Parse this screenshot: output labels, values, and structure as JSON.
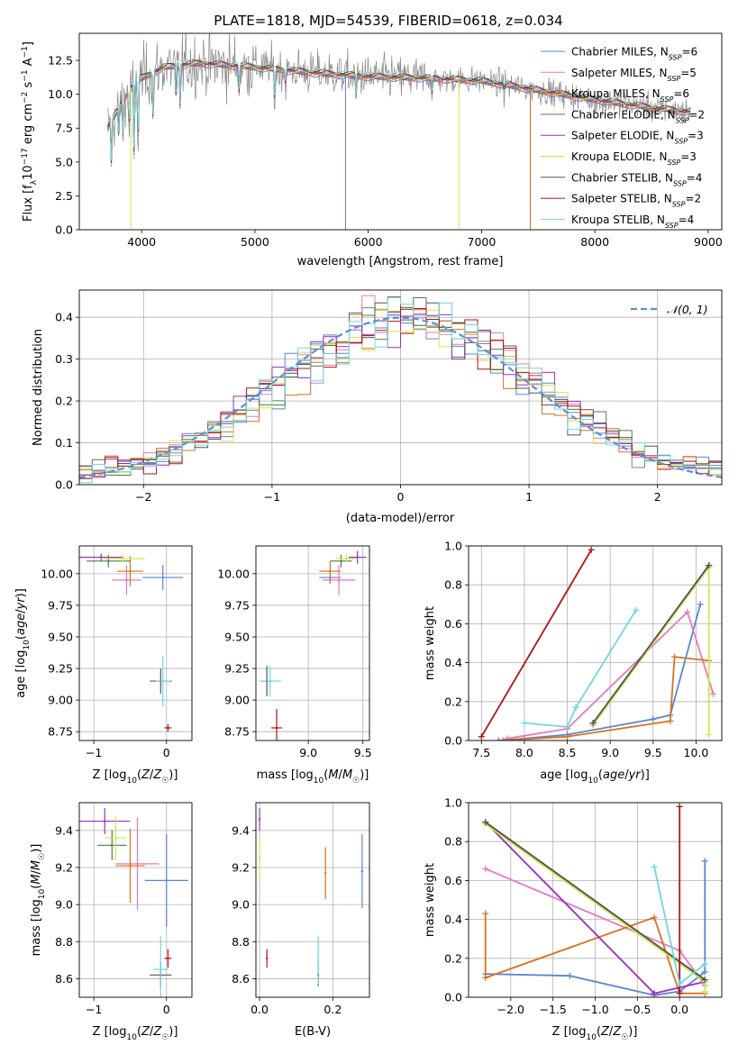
{
  "figure": {
    "title": "PLATE=1818, MJD=54539, FIBERID=0618, z=0.034"
  },
  "colors": {
    "Chabrier MILES": "#5b84d6",
    "Salpeter MILES": "#e87ab8",
    "Kroupa MILES": "#d9711f",
    "Chabrier ELODIE": "#4a7d4a",
    "Salpeter ELODIE": "#9a2ec0",
    "Kroupa ELODIE": "#cfe84a",
    "Chabrier STELIB": "#555555",
    "Salpeter STELIB": "#b01515",
    "Kroupa STELIB": "#6fd7df",
    "normal": "#5b8fd6",
    "data": "#888888"
  },
  "chart_data": [
    {
      "id": "spectrum",
      "type": "line",
      "title": "PLATE=1818, MJD=54539, FIBERID=0618, z=0.034",
      "xlabel": "wavelength [Angstrom, rest frame]",
      "ylabel": "Flux [f_λ10^-17 erg cm^-2 s^-1 A^-1]",
      "xlim": [
        3450,
        9120
      ],
      "ylim": [
        0,
        14.5
      ],
      "xticks": [
        4000,
        5000,
        6000,
        7000,
        8000,
        9000
      ],
      "yticks": [
        0.0,
        2.5,
        5.0,
        7.5,
        10.0,
        12.5
      ],
      "grid": false,
      "legend_position": "top-right",
      "legend": [
        {
          "model": "Chabrier MILES",
          "n_ssp": 6
        },
        {
          "model": "Salpeter MILES",
          "n_ssp": 5
        },
        {
          "model": "Kroupa MILES",
          "n_ssp": 6
        },
        {
          "model": "Chabrier ELODIE",
          "n_ssp": 2
        },
        {
          "model": "Salpeter ELODIE",
          "n_ssp": 3
        },
        {
          "model": "Kroupa ELODIE",
          "n_ssp": 3
        },
        {
          "model": "Chabrier STELIB",
          "n_ssp": 4
        },
        {
          "model": "Salpeter STELIB",
          "n_ssp": 2
        },
        {
          "model": "Kroupa STELIB",
          "n_ssp": 4
        }
      ],
      "wavelength_range": [
        3700,
        8850
      ],
      "continuum": [
        [
          3700,
          7.5
        ],
        [
          3800,
          9.0
        ],
        [
          3900,
          10.5
        ],
        [
          4000,
          11.2
        ],
        [
          4200,
          12.0
        ],
        [
          4500,
          12.3
        ],
        [
          5000,
          12.0
        ],
        [
          5500,
          11.6
        ],
        [
          6000,
          11.3
        ],
        [
          6500,
          11.2
        ],
        [
          7000,
          11.0
        ],
        [
          7500,
          10.3
        ],
        [
          8000,
          9.6
        ],
        [
          8500,
          9.0
        ],
        [
          8850,
          8.7
        ]
      ],
      "absorption_features": [
        [
          3734,
          3.5
        ],
        [
          3798,
          2.0
        ],
        [
          3835,
          2.5
        ],
        [
          3889,
          3.0
        ],
        [
          3934,
          5.5
        ],
        [
          3969,
          5.0
        ],
        [
          4102,
          3.5
        ],
        [
          4304,
          3.0
        ],
        [
          4341,
          3.0
        ],
        [
          4861,
          2.0
        ],
        [
          5175,
          2.5
        ],
        [
          5270,
          1.0
        ],
        [
          5893,
          1.5
        ],
        [
          6563,
          1.0
        ],
        [
          7200,
          0.5
        ]
      ],
      "spikes": [
        {
          "x": 5800,
          "y_min": 0.0,
          "series": "Chabrier MILES"
        },
        {
          "x": 6800,
          "y_min": 0.0,
          "series": "Kroupa ELODIE"
        },
        {
          "x": 7430,
          "y_min": 0.0,
          "series": "Kroupa MILES"
        },
        {
          "x": 3905,
          "y_min": 0.0,
          "series": "Kroupa ELODIE"
        }
      ]
    },
    {
      "id": "residuals",
      "type": "histogram",
      "xlabel": "(data-model)/error",
      "ylabel": "Normed distribution",
      "xlim": [
        -2.5,
        2.5
      ],
      "ylim": [
        0,
        0.465
      ],
      "xticks": [
        -2,
        -1,
        0,
        1,
        2
      ],
      "yticks": [
        0.0,
        0.1,
        0.2,
        0.3,
        0.4
      ],
      "grid": true,
      "legend_position": "top-right",
      "legend": [
        {
          "name": "𝒩(0, 1)"
        }
      ],
      "bin_width": 0.1,
      "bins_range": [
        -2.5,
        2.5
      ],
      "reference_curve": "standard normal"
    },
    {
      "id": "age_vs_Z",
      "type": "scatter",
      "xlabel": "Z [log10(Z/Z☉)]",
      "ylabel": "age [log10(age/yr)]",
      "xlim": [
        -1.2,
        0.35
      ],
      "ylim": [
        8.68,
        10.22
      ],
      "xticks": [
        -1,
        0
      ],
      "yticks": [
        8.75,
        9.0,
        9.25,
        9.5,
        9.75,
        10.0
      ],
      "grid": true,
      "points": [
        {
          "series": "Chabrier MILES",
          "x": -0.05,
          "y": 9.97,
          "xerr": 0.28,
          "yerr": 0.1
        },
        {
          "series": "Salpeter MILES",
          "x": -0.55,
          "y": 9.95,
          "xerr": 0.2,
          "yerr": 0.12
        },
        {
          "series": "Kroupa MILES",
          "x": -0.5,
          "y": 10.02,
          "xerr": 0.18,
          "yerr": 0.12
        },
        {
          "series": "Chabrier ELODIE",
          "x": -0.8,
          "y": 10.1,
          "xerr": 0.3,
          "yerr": 0.05
        },
        {
          "series": "Salpeter ELODIE",
          "x": -0.9,
          "y": 10.13,
          "xerr": 0.3,
          "yerr": 0.03
        },
        {
          "series": "Kroupa ELODIE",
          "x": -0.6,
          "y": 10.12,
          "xerr": 0.3,
          "yerr": 0.03
        },
        {
          "series": "Chabrier STELIB",
          "x": -0.08,
          "y": 9.15,
          "xerr": 0.15,
          "yerr": 0.1
        },
        {
          "series": "Salpeter STELIB",
          "x": 0.02,
          "y": 8.78,
          "xerr": 0.05,
          "yerr": 0.03
        },
        {
          "series": "Kroupa STELIB",
          "x": -0.05,
          "y": 9.15,
          "xerr": 0.1,
          "yerr": 0.2
        }
      ]
    },
    {
      "id": "age_vs_mass",
      "type": "scatter",
      "xlabel": "mass [log10(M/M☉)]",
      "ylabel": "",
      "xlim": [
        8.52,
        9.56
      ],
      "ylim": [
        8.68,
        10.22
      ],
      "xticks": [
        9.0,
        9.5
      ],
      "yticks": [
        8.75,
        9.0,
        9.25,
        9.5,
        9.75,
        10.0
      ],
      "grid": true,
      "points": [
        {
          "series": "Chabrier MILES",
          "x": 9.2,
          "y": 9.97,
          "xerr": 0.1,
          "yerr": 0.05
        },
        {
          "series": "Salpeter MILES",
          "x": 9.28,
          "y": 9.95,
          "xerr": 0.15,
          "yerr": 0.12
        },
        {
          "series": "Kroupa MILES",
          "x": 9.2,
          "y": 10.02,
          "xerr": 0.1,
          "yerr": 0.08
        },
        {
          "series": "Chabrier ELODIE",
          "x": 9.3,
          "y": 10.1,
          "xerr": 0.1,
          "yerr": 0.05
        },
        {
          "series": "Salpeter ELODIE",
          "x": 9.45,
          "y": 10.13,
          "xerr": 0.08,
          "yerr": 0.05
        },
        {
          "series": "Kroupa ELODIE",
          "x": 9.35,
          "y": 10.12,
          "xerr": 0.1,
          "yerr": 0.03
        },
        {
          "series": "Chabrier STELIB",
          "x": 8.62,
          "y": 9.15,
          "xerr": 0.05,
          "yerr": 0.12
        },
        {
          "series": "Salpeter STELIB",
          "x": 8.71,
          "y": 8.78,
          "xerr": 0.05,
          "yerr": 0.15
        },
        {
          "series": "Kroupa STELIB",
          "x": 8.65,
          "y": 9.15,
          "xerr": 0.1,
          "yerr": 0.12
        }
      ]
    },
    {
      "id": "weight_vs_age",
      "type": "line",
      "xlabel": "age [log10(age/yr)]",
      "ylabel": "mass weight",
      "xlim": [
        7.35,
        10.3
      ],
      "ylim": [
        0,
        1.0
      ],
      "xticks": [
        7.5,
        8.0,
        8.5,
        9.0,
        9.5,
        10.0
      ],
      "yticks": [
        0.0,
        0.2,
        0.4,
        0.6,
        0.8,
        1.0
      ],
      "grid": true,
      "series": [
        {
          "name": "Chabrier MILES",
          "x": [
            7.7,
            8.0,
            8.5,
            9.5,
            9.7,
            10.05
          ],
          "y": [
            0.0,
            0.01,
            0.03,
            0.11,
            0.13,
            0.7
          ]
        },
        {
          "name": "Salpeter MILES",
          "x": [
            7.8,
            8.5,
            9.9,
            10.2
          ],
          "y": [
            0.01,
            0.06,
            0.66,
            0.24
          ]
        },
        {
          "name": "Kroupa MILES",
          "x": [
            7.75,
            8.5,
            9.7,
            9.75,
            10.15
          ],
          "y": [
            0.0,
            0.02,
            0.1,
            0.43,
            0.41
          ]
        },
        {
          "name": "Chabrier ELODIE",
          "x": [
            8.8,
            10.15
          ],
          "y": [
            0.09,
            0.9
          ]
        },
        {
          "name": "Salpeter ELODIE",
          "x": [
            8.8,
            10.15
          ],
          "y": [
            0.08,
            0.9
          ]
        },
        {
          "name": "Kroupa ELODIE",
          "x": [
            8.8,
            10.15,
            10.15
          ],
          "y": [
            0.08,
            0.89,
            0.03
          ]
        },
        {
          "name": "Chabrier STELIB",
          "x": [
            8.8,
            10.15
          ],
          "y": [
            0.09,
            0.9
          ]
        },
        {
          "name": "Salpeter STELIB",
          "x": [
            7.5,
            8.78
          ],
          "y": [
            0.02,
            0.98
          ]
        },
        {
          "name": "Kroupa STELIB",
          "x": [
            8.0,
            8.5,
            8.6,
            9.3
          ],
          "y": [
            0.09,
            0.07,
            0.17,
            0.67
          ]
        }
      ]
    },
    {
      "id": "mass_vs_Z",
      "type": "scatter",
      "xlabel": "Z [log10(Z/Z☉)]",
      "ylabel": "mass [log10(M/M☉)]",
      "xlim": [
        -1.2,
        0.35
      ],
      "ylim": [
        8.5,
        9.55
      ],
      "xticks": [
        -1,
        0
      ],
      "yticks": [
        8.6,
        8.8,
        9.0,
        9.2,
        9.4
      ],
      "grid": true,
      "points": [
        {
          "series": "Chabrier MILES",
          "x": 0.0,
          "y": 9.13,
          "xerr": 0.3,
          "yerr": 0.25
        },
        {
          "series": "Salpeter MILES",
          "x": -0.4,
          "y": 9.22,
          "xerr": 0.3,
          "yerr": 0.25
        },
        {
          "series": "Kroupa MILES",
          "x": -0.5,
          "y": 9.21,
          "xerr": 0.2,
          "yerr": 0.2
        },
        {
          "series": "Chabrier ELODIE",
          "x": -0.75,
          "y": 9.32,
          "xerr": 0.2,
          "yerr": 0.08
        },
        {
          "series": "Salpeter ELODIE",
          "x": -0.85,
          "y": 9.45,
          "xerr": 0.35,
          "yerr": 0.07
        },
        {
          "series": "Kroupa ELODIE",
          "x": -0.7,
          "y": 9.36,
          "xerr": 0.15,
          "yerr": 0.12
        },
        {
          "series": "Chabrier STELIB",
          "x": -0.08,
          "y": 8.62,
          "xerr": 0.15,
          "yerr": 0.07
        },
        {
          "series": "Salpeter STELIB",
          "x": 0.02,
          "y": 8.71,
          "xerr": 0.05,
          "yerr": 0.05
        },
        {
          "series": "Kroupa STELIB",
          "x": -0.08,
          "y": 8.65,
          "xerr": 0.1,
          "yerr": 0.18
        }
      ]
    },
    {
      "id": "mass_vs_ebv",
      "type": "scatter",
      "xlabel": "E(B-V)",
      "ylabel": "",
      "xlim": [
        -0.01,
        0.3
      ],
      "ylim": [
        8.5,
        9.55
      ],
      "xticks": [
        0.0,
        0.2
      ],
      "yticks": [
        8.6,
        8.8,
        9.0,
        9.2,
        9.4
      ],
      "grid": true,
      "points": [
        {
          "series": "Chabrier MILES",
          "x": 0.28,
          "y": 9.18,
          "xerr": 0,
          "yerr": 0.2
        },
        {
          "series": "Kroupa MILES",
          "x": 0.18,
          "y": 9.17,
          "xerr": 0,
          "yerr": 0.14
        },
        {
          "series": "Salpeter ELODIE",
          "x": 0.0,
          "y": 9.46,
          "xerr": 0,
          "yerr": 0.06
        },
        {
          "series": "Kroupa ELODIE",
          "x": 0.0,
          "y": 9.25,
          "xerr": 0,
          "yerr": 0.12
        },
        {
          "series": "Chabrier STELIB",
          "x": 0.16,
          "y": 8.62,
          "xerr": 0,
          "yerr": 0.06
        },
        {
          "series": "Salpeter STELIB",
          "x": 0.02,
          "y": 8.71,
          "xerr": 0,
          "yerr": 0.05
        },
        {
          "series": "Kroupa STELIB",
          "x": 0.16,
          "y": 8.7,
          "xerr": 0,
          "yerr": 0.13
        }
      ]
    },
    {
      "id": "weight_vs_Z",
      "type": "line",
      "xlabel": "Z [log10(Z/Z☉)]",
      "ylabel": "mass weight",
      "xlim": [
        -2.5,
        0.5
      ],
      "ylim": [
        0,
        1.0
      ],
      "xticks": [
        -2.0,
        -1.5,
        -1.0,
        -0.5,
        0.0
      ],
      "yticks": [
        0.0,
        0.2,
        0.4,
        0.6,
        0.8,
        1.0
      ],
      "grid": true,
      "series": [
        {
          "name": "Chabrier MILES",
          "x": [
            -2.3,
            -1.3,
            -0.3,
            0.0,
            0.3,
            0.3
          ],
          "y": [
            0.12,
            0.11,
            0.01,
            0.03,
            0.13,
            0.7
          ]
        },
        {
          "name": "Salpeter MILES",
          "x": [
            -2.3,
            0.0,
            0.3
          ],
          "y": [
            0.66,
            0.24,
            0.06
          ]
        },
        {
          "name": "Kroupa MILES",
          "x": [
            -2.3,
            -2.3,
            -0.3,
            0.0,
            0.3
          ],
          "y": [
            0.43,
            0.1,
            0.41,
            0.02,
            0.02
          ]
        },
        {
          "name": "Chabrier ELODIE",
          "x": [
            -2.3,
            0.3
          ],
          "y": [
            0.9,
            0.09
          ]
        },
        {
          "name": "Salpeter ELODIE",
          "x": [
            -2.3,
            -0.3,
            0.3
          ],
          "y": [
            0.9,
            0.02,
            0.08
          ]
        },
        {
          "name": "Kroupa ELODIE",
          "x": [
            -2.3,
            0.3,
            0.3
          ],
          "y": [
            0.89,
            0.08,
            0.03
          ]
        },
        {
          "name": "Chabrier STELIB",
          "x": [
            -2.3,
            0.3
          ],
          "y": [
            0.9,
            0.09
          ]
        },
        {
          "name": "Salpeter STELIB",
          "x": [
            0.0,
            0.0
          ],
          "y": [
            0.02,
            0.98
          ]
        },
        {
          "name": "Kroupa STELIB",
          "x": [
            -0.3,
            0.0,
            0.3
          ],
          "y": [
            0.67,
            0.07,
            0.17
          ]
        }
      ]
    }
  ]
}
